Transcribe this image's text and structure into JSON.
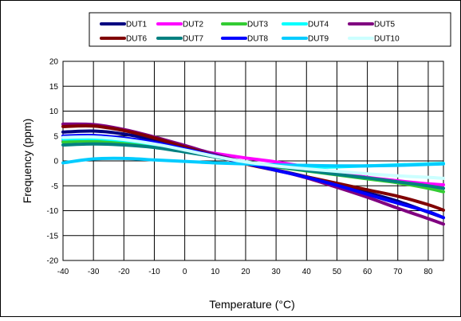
{
  "chart_data": {
    "type": "line",
    "title": "",
    "xlabel": "Temperature (°C)",
    "ylabel": "Frequency (ppm)",
    "xlim": [
      -40,
      85
    ],
    "ylim": [
      -20,
      20
    ],
    "x_ticks": [
      "-40",
      "-30",
      "-20",
      "-10",
      "0",
      "10",
      "20",
      "30",
      "40",
      "50",
      "60",
      "70",
      "80"
    ],
    "y_ticks": [
      "20",
      "15",
      "10",
      "5",
      "0",
      "-5",
      "-10",
      "-15",
      "-20"
    ],
    "grid": true,
    "legend_position": "top",
    "x": [
      -40,
      -30,
      -20,
      -10,
      0,
      10,
      20,
      30,
      40,
      50,
      60,
      70,
      80,
      85
    ],
    "series": [
      {
        "name": "DUT1",
        "color": "#000080",
        "values": [
          5.8,
          6.0,
          5.4,
          4.2,
          2.8,
          1.1,
          -0.4,
          -1.8,
          -3.2,
          -4.8,
          -6.4,
          -8.1,
          -10.3,
          -11.4
        ]
      },
      {
        "name": "DUT2",
        "color": "#ff00ff",
        "values": [
          4.0,
          4.2,
          3.9,
          3.3,
          2.4,
          1.5,
          0.6,
          -0.2,
          -1.2,
          -2.3,
          -3.3,
          -4.0,
          -4.6,
          -4.8
        ]
      },
      {
        "name": "DUT3",
        "color": "#33cc33",
        "values": [
          3.8,
          4.0,
          3.6,
          2.9,
          1.9,
          0.8,
          -0.3,
          -1.2,
          -2.0,
          -2.8,
          -3.6,
          -4.4,
          -5.5,
          -6.2
        ]
      },
      {
        "name": "DUT4",
        "color": "#00ffff",
        "values": [
          4.4,
          4.5,
          4.1,
          3.3,
          2.1,
          0.8,
          -0.4,
          -1.1,
          -1.3,
          -1.2,
          -1.0,
          -0.8,
          -0.6,
          -0.5
        ]
      },
      {
        "name": "DUT5",
        "color": "#800080",
        "values": [
          7.4,
          7.3,
          6.3,
          4.8,
          3.1,
          1.3,
          -0.3,
          -1.8,
          -3.4,
          -5.3,
          -7.3,
          -9.5,
          -11.6,
          -12.7
        ]
      },
      {
        "name": "DUT6",
        "color": "#800000",
        "values": [
          6.9,
          7.0,
          6.1,
          4.6,
          2.8,
          1.0,
          -0.6,
          -1.9,
          -3.2,
          -4.5,
          -5.8,
          -7.1,
          -8.8,
          -9.9
        ]
      },
      {
        "name": "DUT7",
        "color": "#008080",
        "values": [
          3.2,
          3.4,
          3.2,
          2.7,
          1.8,
          0.8,
          -0.2,
          -1.1,
          -1.9,
          -2.7,
          -3.4,
          -4.2,
          -5.0,
          -5.5
        ]
      },
      {
        "name": "DUT8",
        "color": "#0000ff",
        "values": [
          5.0,
          5.1,
          4.6,
          3.7,
          2.4,
          1.0,
          -0.5,
          -1.9,
          -3.3,
          -4.9,
          -6.7,
          -8.5,
          -10.2,
          -11.4
        ]
      },
      {
        "name": "DUT9",
        "color": "#00ccff",
        "values": [
          -0.4,
          0.4,
          0.5,
          0.2,
          -0.1,
          -0.4,
          -0.6,
          -0.8,
          -0.9,
          -1.0,
          -1.0,
          -0.9,
          -0.7,
          -0.6
        ]
      },
      {
        "name": "DUT10",
        "color": "#ccffff",
        "values": [
          4.7,
          4.8,
          4.3,
          3.4,
          2.2,
          0.9,
          -0.2,
          -1.0,
          -1.6,
          -2.1,
          -2.6,
          -3.0,
          -3.3,
          -3.5
        ]
      }
    ]
  }
}
